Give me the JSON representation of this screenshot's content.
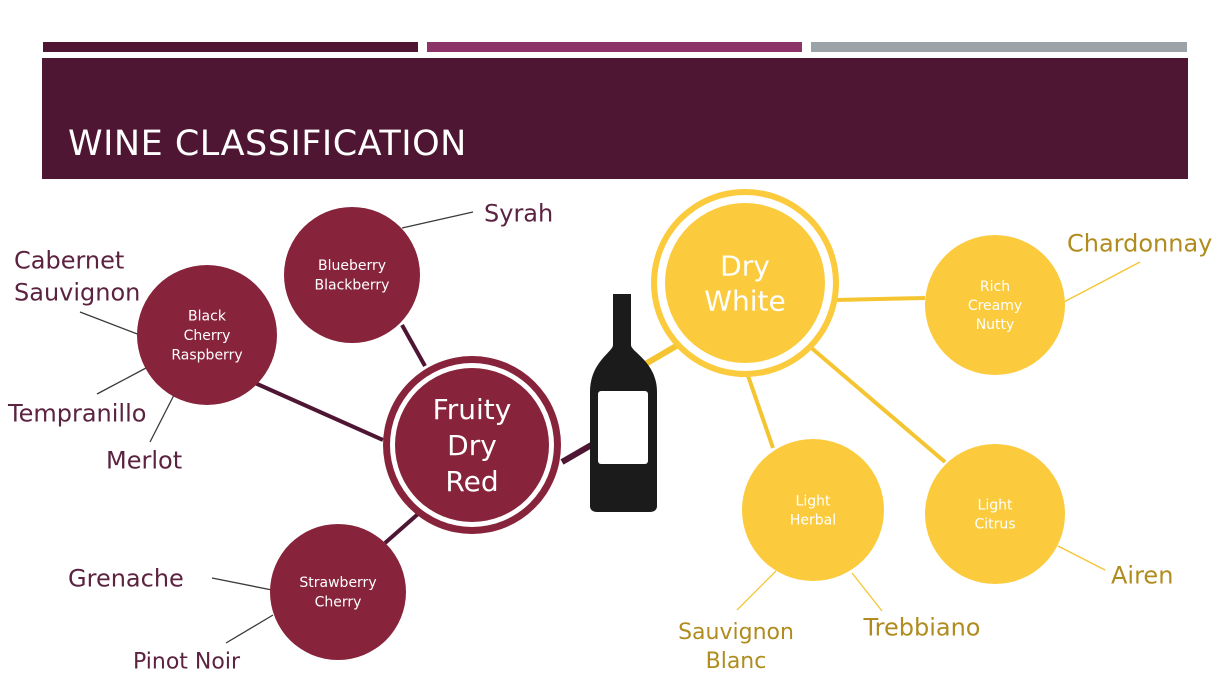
{
  "slide": {
    "title": "WINE CLASSIFICATION"
  },
  "colors": {
    "stripe_1": "#4e1633",
    "stripe_2": "#8c3368",
    "stripe_3": "#9ba2a8",
    "banner": "#4e1633",
    "red_node": "#87233a",
    "red_line": "#4e1633",
    "red_label": "#5b2340",
    "white_node": "#fbcb3d",
    "white_line": "#f4c530",
    "white_label": "#b08c1f",
    "bottle": "#1b1b1b",
    "bottle_label": "#ffffff"
  },
  "diagram": {
    "bottle_icon": "wine-bottle-icon",
    "red": {
      "hub": [
        "Fruity",
        "Dry",
        "Red"
      ],
      "nodes": [
        {
          "id": "black-cherry",
          "lines": [
            "Black",
            "Cherry",
            "Raspberry"
          ],
          "wines": [
            [
              "Cabernet",
              "Sauvignon"
            ],
            [
              "Tempranillo"
            ],
            [
              "Merlot"
            ]
          ]
        },
        {
          "id": "blueberry",
          "lines": [
            "Blueberry",
            "Blackberry"
          ],
          "wines": [
            [
              "Syrah"
            ]
          ]
        },
        {
          "id": "strawberry",
          "lines": [
            "Strawberry",
            "Cherry"
          ],
          "wines": [
            [
              "Grenache"
            ],
            [
              "Pinot Noir"
            ]
          ]
        }
      ]
    },
    "white": {
      "hub": [
        "Dry",
        "White"
      ],
      "nodes": [
        {
          "id": "rich",
          "lines": [
            "Rich",
            "Creamy",
            "Nutty"
          ],
          "wines": [
            [
              "Chardonnay"
            ]
          ]
        },
        {
          "id": "herbal",
          "lines": [
            "Light",
            "Herbal"
          ],
          "wines": [
            [
              "Sauvignon",
              "Blanc"
            ],
            [
              "Trebbiano"
            ]
          ]
        },
        {
          "id": "citrus",
          "lines": [
            "Light",
            "Citrus"
          ],
          "wines": [
            [
              "Airen"
            ]
          ]
        }
      ]
    }
  }
}
